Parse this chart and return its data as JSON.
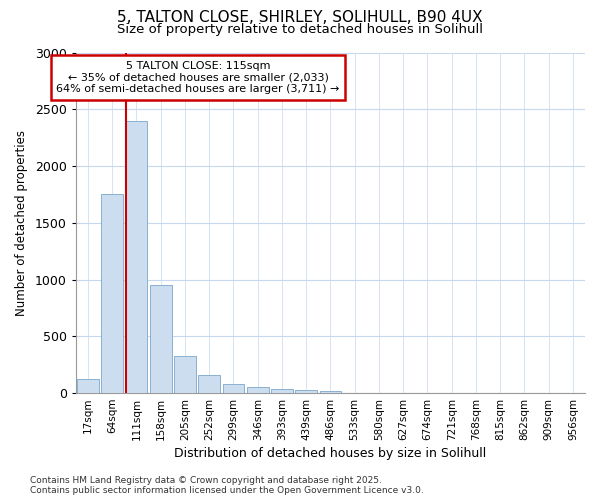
{
  "title1": "5, TALTON CLOSE, SHIRLEY, SOLIHULL, B90 4UX",
  "title2": "Size of property relative to detached houses in Solihull",
  "xlabel": "Distribution of detached houses by size in Solihull",
  "ylabel": "Number of detached properties",
  "categories": [
    "17sqm",
    "64sqm",
    "111sqm",
    "158sqm",
    "205sqm",
    "252sqm",
    "299sqm",
    "346sqm",
    "393sqm",
    "439sqm",
    "486sqm",
    "533sqm",
    "580sqm",
    "627sqm",
    "674sqm",
    "721sqm",
    "768sqm",
    "815sqm",
    "862sqm",
    "909sqm",
    "956sqm"
  ],
  "values": [
    120,
    1750,
    2400,
    950,
    330,
    155,
    80,
    55,
    40,
    30,
    20,
    5,
    5,
    0,
    0,
    0,
    0,
    0,
    0,
    0,
    0
  ],
  "bar_color": "#ccddf0",
  "bar_edge_color": "#8ab0d0",
  "vline_x_index": 2,
  "vline_color": "#cc0000",
  "ylim": [
    0,
    3000
  ],
  "yticks": [
    0,
    500,
    1000,
    1500,
    2000,
    2500,
    3000
  ],
  "annotation_title": "5 TALTON CLOSE: 115sqm",
  "annotation_line1": "← 35% of detached houses are smaller (2,033)",
  "annotation_line2": "64% of semi-detached houses are larger (3,711) →",
  "annotation_box_color": "#ffffff",
  "annotation_box_edge": "#cc0000",
  "footer1": "Contains HM Land Registry data © Crown copyright and database right 2025.",
  "footer2": "Contains public sector information licensed under the Open Government Licence v3.0.",
  "background_color": "#ffffff",
  "plot_background": "#ffffff",
  "grid_color": "#c8d8ec"
}
